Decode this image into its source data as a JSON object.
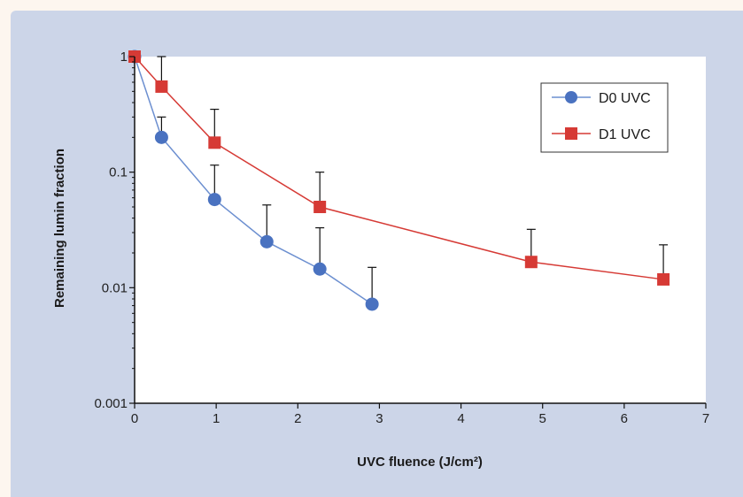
{
  "chart_data": {
    "type": "line",
    "title": "",
    "xlabel": "UVC fluence (J/cm²)",
    "ylabel": "Remaining lumin fraction",
    "x_scale": "linear",
    "y_scale": "log",
    "xlim": [
      0,
      7
    ],
    "ylim": [
      0.001,
      1
    ],
    "x_ticks": [
      "0",
      "1",
      "2",
      "3",
      "4",
      "5",
      "6",
      "7"
    ],
    "y_ticks": [
      "0.001",
      "0.01",
      "0.1",
      "1"
    ],
    "grid": false,
    "legend_position": "top-right",
    "series": [
      {
        "name": "D0 UVC",
        "marker": "circle",
        "color": "#4a72c0",
        "line_color": "#6c8fd0",
        "x": [
          0,
          0.33,
          0.98,
          1.62,
          2.27,
          2.91
        ],
        "y": [
          1.0,
          0.2,
          0.058,
          0.025,
          0.0145,
          0.0072
        ],
        "err_upper": [
          null,
          0.3,
          0.115,
          0.052,
          0.033,
          0.015
        ]
      },
      {
        "name": "D1 UVC",
        "marker": "square",
        "color": "#d63a35",
        "line_color": "#d63a35",
        "x": [
          0,
          0.33,
          0.98,
          2.27,
          4.86,
          6.48
        ],
        "y": [
          1.0,
          0.55,
          0.18,
          0.05,
          0.0167,
          0.0118
        ],
        "err_upper": [
          null,
          1.0,
          0.35,
          0.1,
          0.032,
          0.0235
        ]
      }
    ]
  }
}
